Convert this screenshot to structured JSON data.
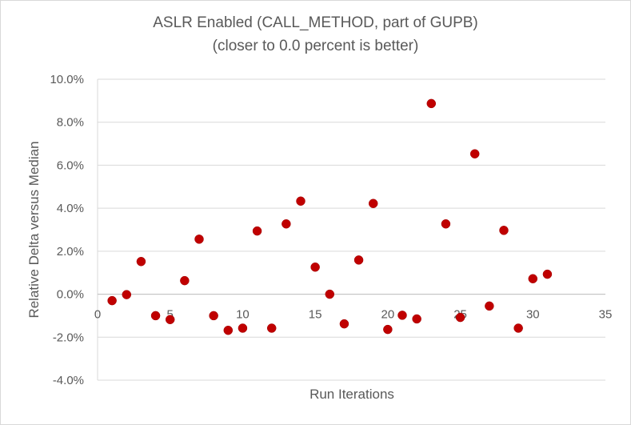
{
  "chart_data": {
    "type": "scatter",
    "title": "ASLR Enabled (CALL_METHOD, part of GUPB)",
    "subtitle": "(closer to 0.0 percent is better)",
    "xlabel": "Run Iterations",
    "ylabel": "Relative Delta versus Median",
    "xlim": [
      0,
      35
    ],
    "ylim": [
      -4.0,
      10.0
    ],
    "x_ticks": [
      0,
      5,
      10,
      15,
      20,
      25,
      30,
      35
    ],
    "x_tick_labels": [
      "0",
      "5",
      "10",
      "15",
      "20",
      "25",
      "30",
      "35"
    ],
    "y_ticks": [
      -4,
      -2,
      0,
      2,
      4,
      6,
      8,
      10
    ],
    "y_tick_labels": [
      "-4.0%",
      "-2.0%",
      "0.0%",
      "2.0%",
      "4.0%",
      "6.0%",
      "8.0%",
      "10.0%"
    ],
    "grid": "horizontal",
    "legend": "none",
    "marker_color": "#c00000",
    "series": [
      {
        "x": [
          1,
          2,
          3,
          4,
          5,
          6,
          7,
          8,
          9,
          10,
          11,
          12,
          13,
          14,
          15,
          16,
          17,
          18,
          19,
          20,
          21,
          22,
          23,
          24,
          25,
          26,
          27,
          28,
          29,
          30,
          31
        ],
        "values": [
          -0.3,
          -0.02,
          1.52,
          -1.0,
          -1.18,
          0.63,
          2.56,
          -1.0,
          -1.68,
          -1.58,
          2.94,
          -1.58,
          3.27,
          4.33,
          1.26,
          0.0,
          -1.38,
          1.59,
          4.22,
          -1.64,
          -0.98,
          -1.15,
          8.87,
          3.27,
          -1.08,
          6.53,
          -0.55,
          2.97,
          -1.58,
          0.72,
          0.93
        ]
      }
    ]
  }
}
